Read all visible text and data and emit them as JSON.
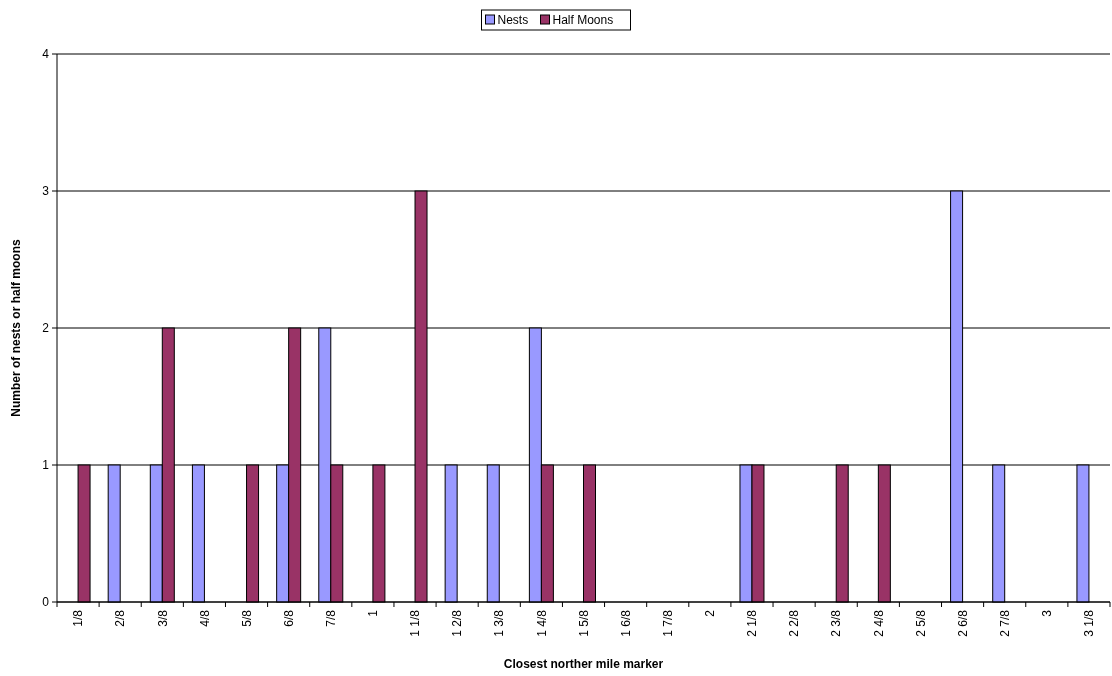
{
  "chart_data": {
    "type": "bar",
    "xlabel": "Closest norther mile marker",
    "ylabel": "Number of nests or half moons",
    "categories": [
      "1/8",
      "2/8",
      "3/8",
      "4/8",
      "5/8",
      "6/8",
      "7/8",
      "1",
      "1 1/8",
      "1 2/8",
      "1 3/8",
      "1 4/8",
      "1 5/8",
      "1 6/8",
      "1 7/8",
      "2",
      "2 1/8",
      "2 2/8",
      "2 3/8",
      "2 4/8",
      "2 5/8",
      "2 6/8",
      "2 7/8",
      "3",
      "3 1/8"
    ],
    "series": [
      {
        "name": "Nests",
        "color": "#9999ff",
        "values": [
          0,
          1,
          1,
          1,
          0,
          1,
          2,
          0,
          0,
          1,
          1,
          2,
          0,
          0,
          0,
          0,
          1,
          0,
          0,
          0,
          0,
          3,
          1,
          0,
          1
        ]
      },
      {
        "name": "Half Moons",
        "color": "#993366",
        "values": [
          1,
          0,
          2,
          0,
          1,
          2,
          1,
          1,
          3,
          0,
          0,
          1,
          1,
          0,
          0,
          0,
          1,
          0,
          1,
          1,
          0,
          0,
          0,
          0,
          0
        ]
      }
    ],
    "ylim": [
      0,
      4
    ],
    "yticks": [
      0,
      1,
      2,
      3,
      4
    ],
    "grid": "y",
    "legend": "top"
  }
}
